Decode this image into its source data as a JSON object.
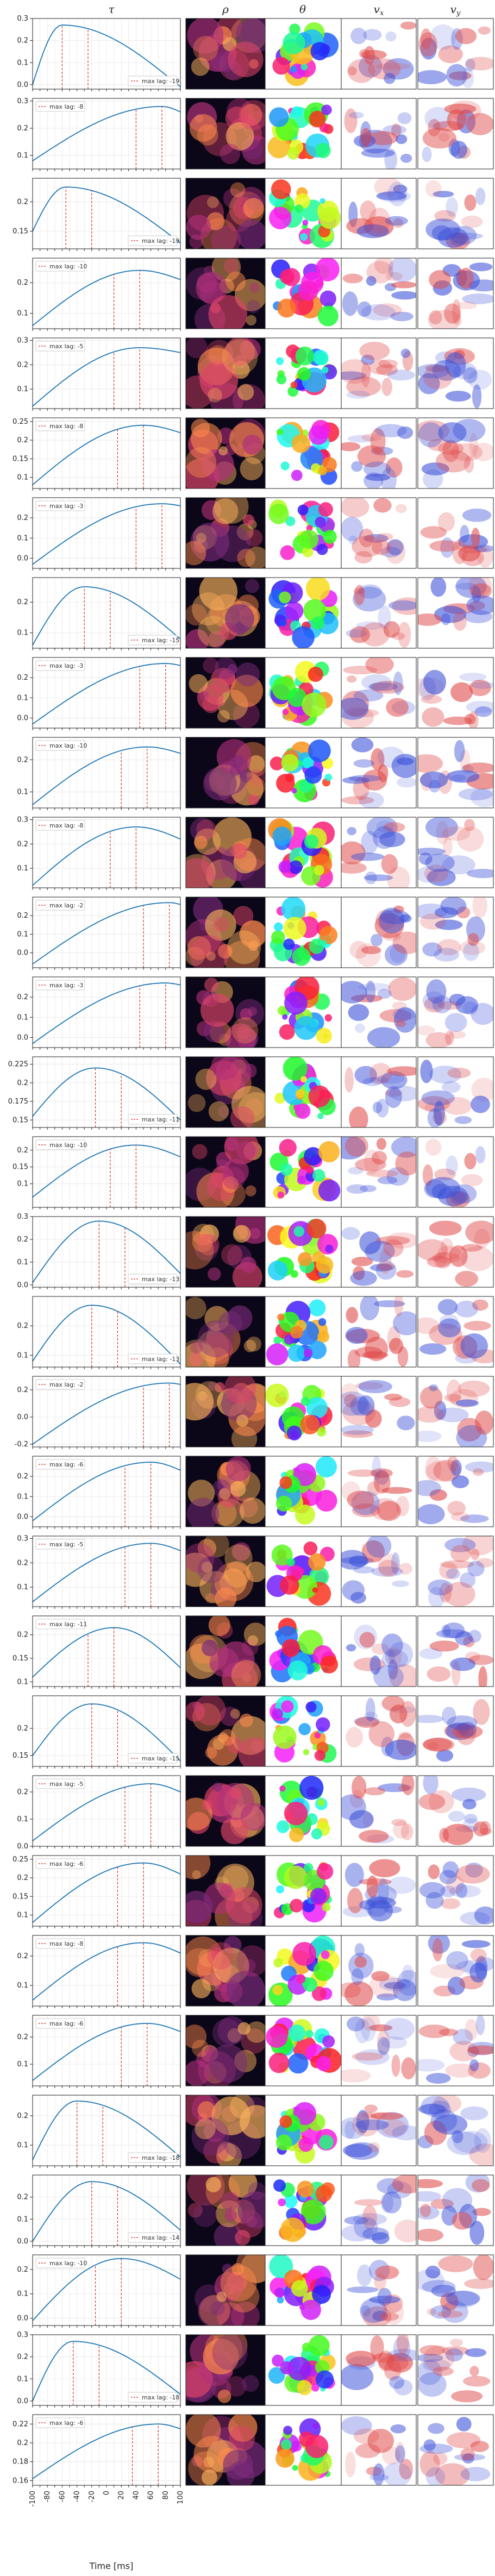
{
  "columns": [
    "τ",
    "ρ",
    "θ",
    "v",
    "v"
  ],
  "column_subscripts": [
    "",
    "",
    "",
    "x",
    "y"
  ],
  "xlabel": "Time [ms]",
  "x_tick_labels": [
    "-100",
    "-80",
    "-60",
    "-40",
    "-20",
    "0",
    "20",
    "40",
    "60",
    "80",
    "100"
  ],
  "legend_prefix": "max lag: ",
  "colors": {
    "curve": "#1f77b4",
    "maxlag": "#d62728",
    "density_bg": "#0b0718",
    "grid": "#e6e6e6",
    "frame": "#222222"
  },
  "chart_data": {
    "type": "line",
    "x_range": [
      -100,
      100
    ],
    "rows": [
      {
        "lag": -19,
        "ylim": [
          -0.02,
          0.3
        ],
        "yticks": [
          0.0,
          0.1,
          0.2,
          0.3
        ],
        "peak_x": -60,
        "peak_y": 0.27,
        "left_y": 0.0,
        "right_y": -0.01
      },
      {
        "lag": -8,
        "ylim": [
          0.05,
          0.31
        ],
        "yticks": [
          0.1,
          0.2,
          0.3
        ],
        "peak_x": 75,
        "peak_y": 0.28,
        "left_y": 0.08,
        "right_y": 0.26
      },
      {
        "lag": -19,
        "ylim": [
          0.12,
          0.24
        ],
        "yticks": [
          0.15,
          0.2
        ],
        "peak_x": -55,
        "peak_y": 0.225,
        "left_y": 0.15,
        "right_y": 0.13
      },
      {
        "lag": -10,
        "ylim": [
          0.05,
          0.28
        ],
        "yticks": [
          0.1,
          0.2
        ],
        "peak_x": 45,
        "peak_y": 0.24,
        "left_y": 0.06,
        "right_y": 0.21
      },
      {
        "lag": -5,
        "ylim": [
          0.02,
          0.31
        ],
        "yticks": [
          0.1,
          0.2,
          0.3
        ],
        "peak_x": 45,
        "peak_y": 0.27,
        "left_y": 0.03,
        "right_y": 0.25
      },
      {
        "lag": -8,
        "ylim": [
          0.07,
          0.26
        ],
        "yticks": [
          0.1,
          0.15,
          0.2,
          0.25
        ],
        "peak_x": 50,
        "peak_y": 0.24,
        "left_y": 0.08,
        "right_y": 0.22
      },
      {
        "lag": -3,
        "ylim": [
          -0.05,
          0.3
        ],
        "yticks": [
          0.0,
          0.1,
          0.2
        ],
        "peak_x": 75,
        "peak_y": 0.27,
        "left_y": -0.03,
        "right_y": 0.26
      },
      {
        "lag": -15,
        "ylim": [
          0.05,
          0.28
        ],
        "yticks": [
          0.1,
          0.2
        ],
        "peak_x": -30,
        "peak_y": 0.25,
        "left_y": 0.06,
        "right_y": 0.08
      },
      {
        "lag": -3,
        "ylim": [
          -0.05,
          0.3
        ],
        "yticks": [
          0.0,
          0.1,
          0.2
        ],
        "peak_x": 80,
        "peak_y": 0.27,
        "left_y": -0.03,
        "right_y": 0.26
      },
      {
        "lag": -10,
        "ylim": [
          0.05,
          0.27
        ],
        "yticks": [
          0.1,
          0.2
        ],
        "peak_x": 55,
        "peak_y": 0.24,
        "left_y": 0.06,
        "right_y": 0.22
      },
      {
        "lag": -8,
        "ylim": [
          0.02,
          0.31
        ],
        "yticks": [
          0.1,
          0.2,
          0.3
        ],
        "peak_x": 40,
        "peak_y": 0.27,
        "left_y": 0.03,
        "right_y": 0.22
      },
      {
        "lag": -2,
        "ylim": [
          -0.08,
          0.3
        ],
        "yticks": [
          0.0,
          0.1,
          0.2
        ],
        "peak_x": 85,
        "peak_y": 0.27,
        "left_y": -0.06,
        "right_y": 0.26
      },
      {
        "lag": -3,
        "ylim": [
          -0.05,
          0.3
        ],
        "yticks": [
          0.0,
          0.1,
          0.2
        ],
        "peak_x": 80,
        "peak_y": 0.27,
        "left_y": -0.03,
        "right_y": 0.26
      },
      {
        "lag": -11,
        "ylim": [
          0.14,
          0.235
        ],
        "yticks": [
          0.15,
          0.175,
          0.2,
          0.225
        ],
        "peak_x": -15,
        "peak_y": 0.22,
        "left_y": 0.155,
        "right_y": 0.15
      },
      {
        "lag": -10,
        "ylim": [
          0.03,
          0.24
        ],
        "yticks": [
          0.1,
          0.15,
          0.2
        ],
        "peak_x": 40,
        "peak_y": 0.215,
        "left_y": 0.06,
        "right_y": 0.18
      },
      {
        "lag": -13,
        "ylim": [
          -0.01,
          0.3
        ],
        "yticks": [
          0.0,
          0.1,
          0.2,
          0.3
        ],
        "peak_x": -10,
        "peak_y": 0.28,
        "left_y": 0.01,
        "right_y": 0.05
      },
      {
        "lag": -13,
        "ylim": [
          0.06,
          0.3
        ],
        "yticks": [
          0.1,
          0.2
        ],
        "peak_x": -20,
        "peak_y": 0.27,
        "left_y": 0.08,
        "right_y": 0.07
      },
      {
        "lag": -2,
        "ylim": [
          -0.22,
          0.3
        ],
        "yticks": [
          -0.2,
          0.0,
          0.2
        ],
        "peak_x": 85,
        "peak_y": 0.25,
        "left_y": -0.2,
        "right_y": 0.24
      },
      {
        "lag": -6,
        "ylim": [
          -0.05,
          0.3
        ],
        "yticks": [
          0.0,
          0.1,
          0.2
        ],
        "peak_x": 60,
        "peak_y": 0.27,
        "left_y": -0.02,
        "right_y": 0.23
      },
      {
        "lag": -5,
        "ylim": [
          0.02,
          0.31
        ],
        "yticks": [
          0.1,
          0.2,
          0.3
        ],
        "peak_x": 60,
        "peak_y": 0.28,
        "left_y": 0.04,
        "right_y": 0.25
      },
      {
        "lag": -11,
        "ylim": [
          0.09,
          0.24
        ],
        "yticks": [
          0.1,
          0.15,
          0.2
        ],
        "peak_x": 10,
        "peak_y": 0.215,
        "left_y": 0.11,
        "right_y": 0.13
      },
      {
        "lag": -15,
        "ylim": [
          0.13,
          0.26
        ],
        "yticks": [
          0.15,
          0.2
        ],
        "peak_x": -20,
        "peak_y": 0.245,
        "left_y": 0.15,
        "right_y": 0.14
      },
      {
        "lag": -5,
        "ylim": [
          0.0,
          0.26
        ],
        "yticks": [
          0.0,
          0.1,
          0.2
        ],
        "peak_x": 60,
        "peak_y": 0.23,
        "left_y": 0.02,
        "right_y": 0.2
      },
      {
        "lag": -6,
        "ylim": [
          0.07,
          0.26
        ],
        "yticks": [
          0.1,
          0.15,
          0.2,
          0.25
        ],
        "peak_x": 50,
        "peak_y": 0.24,
        "left_y": 0.08,
        "right_y": 0.21
      },
      {
        "lag": -8,
        "ylim": [
          0.03,
          0.27
        ],
        "yticks": [
          0.1,
          0.2
        ],
        "peak_x": 50,
        "peak_y": 0.245,
        "left_y": 0.05,
        "right_y": 0.21
      },
      {
        "lag": -6,
        "ylim": [
          0.02,
          0.28
        ],
        "yticks": [
          0.1,
          0.2
        ],
        "peak_x": 55,
        "peak_y": 0.25,
        "left_y": 0.04,
        "right_y": 0.22
      },
      {
        "lag": -18,
        "ylim": [
          0.03,
          0.27
        ],
        "yticks": [
          0.1,
          0.2
        ],
        "peak_x": -40,
        "peak_y": 0.25,
        "left_y": 0.05,
        "right_y": 0.06
      },
      {
        "lag": -14,
        "ylim": [
          -0.02,
          0.3
        ],
        "yticks": [
          0.0,
          0.1,
          0.2
        ],
        "peak_x": -20,
        "peak_y": 0.27,
        "left_y": 0.0,
        "right_y": 0.05
      },
      {
        "lag": -10,
        "ylim": [
          -0.03,
          0.26
        ],
        "yticks": [
          0.0,
          0.1,
          0.2
        ],
        "peak_x": 20,
        "peak_y": 0.245,
        "left_y": -0.01,
        "right_y": 0.16
      },
      {
        "lag": -18,
        "ylim": [
          -0.02,
          0.3
        ],
        "yticks": [
          0.0,
          0.1,
          0.2,
          0.3
        ],
        "peak_x": -45,
        "peak_y": 0.27,
        "left_y": 0.0,
        "right_y": 0.03
      },
      {
        "lag": -6,
        "ylim": [
          0.155,
          0.23
        ],
        "yticks": [
          0.16,
          0.18,
          0.2,
          0.22
        ],
        "peak_x": 70,
        "peak_y": 0.22,
        "left_y": 0.162,
        "right_y": 0.215
      }
    ]
  }
}
